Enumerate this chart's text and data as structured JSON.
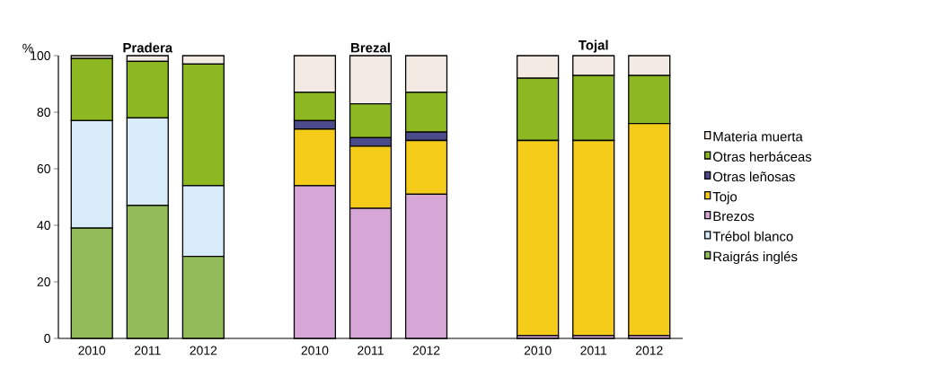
{
  "chart_data": {
    "type": "bar",
    "stacked": true,
    "ylabel": "%",
    "annotations": [
      "Pradera",
      "Brezal",
      "Tojal"
    ],
    "categories": [
      "2010",
      "2011",
      "2012",
      null,
      "2010",
      "2011",
      "2012",
      null,
      "2010",
      "2011",
      "2012"
    ],
    "series": [
      {
        "name": "Raigrás inglés",
        "color": "#93bb5a",
        "values": [
          39,
          47,
          29,
          null,
          0,
          0,
          0,
          null,
          0,
          0,
          0
        ]
      },
      {
        "name": "Trébol blanco",
        "color": "#d8ebf8",
        "values": [
          38,
          31,
          25,
          null,
          0,
          0,
          0,
          null,
          0,
          0,
          0
        ]
      },
      {
        "name": "Brezos",
        "color": "#d5a6d6",
        "values": [
          0,
          0,
          0,
          null,
          54,
          46,
          51,
          null,
          1,
          1,
          1
        ]
      },
      {
        "name": "Tojo",
        "color": "#f6cc1a",
        "values": [
          0,
          0,
          0,
          null,
          20,
          22,
          19,
          null,
          69,
          69,
          75
        ]
      },
      {
        "name": "Otras leñosas",
        "color": "#4b4a8a",
        "values": [
          0,
          0,
          0,
          null,
          3,
          3,
          3,
          null,
          0,
          0,
          0
        ]
      },
      {
        "name": "Otras herbáceas",
        "color": "#8db822",
        "values": [
          22,
          20,
          43,
          null,
          10,
          12,
          14,
          null,
          22,
          23,
          17
        ]
      },
      {
        "name": "Materia muerta",
        "color": "#f3ebe3",
        "values": [
          1,
          2,
          3,
          null,
          13,
          17,
          13,
          null,
          8,
          7,
          7
        ]
      }
    ],
    "ylim": [
      0,
      100
    ],
    "yticks": [
      0,
      20,
      40,
      60,
      80,
      100
    ],
    "legend": "right"
  }
}
